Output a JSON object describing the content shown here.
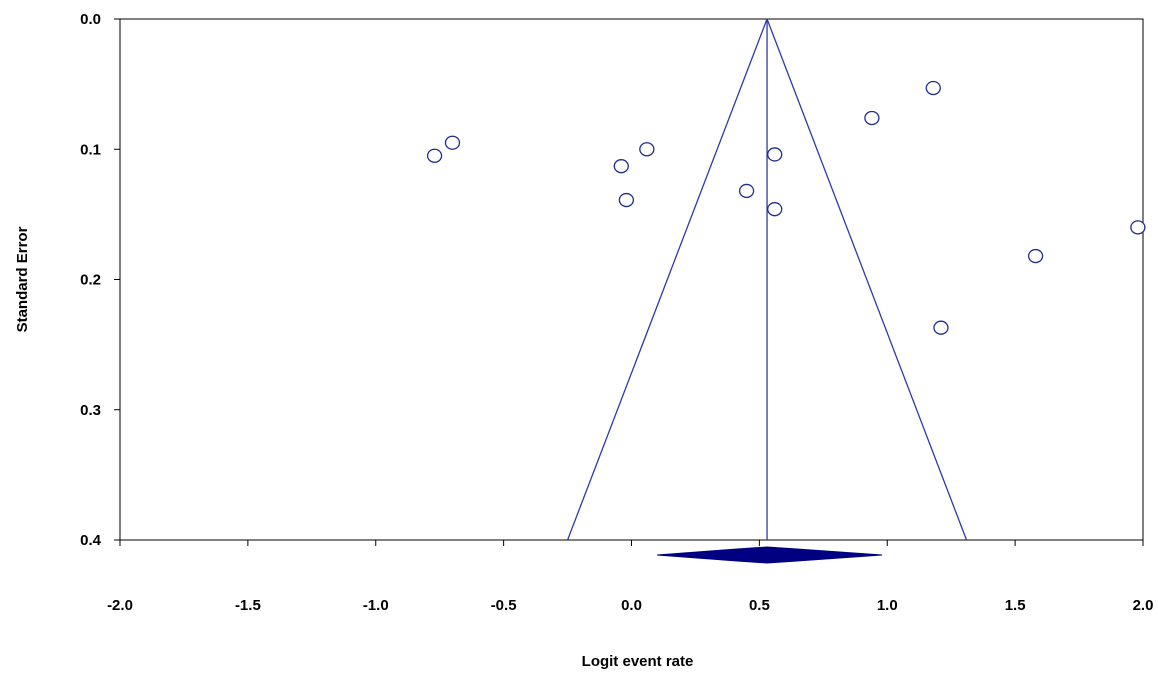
{
  "chart_data": {
    "type": "scatter",
    "subtype": "funnel-plot",
    "title": "",
    "xlabel": "Logit event rate",
    "ylabel": "Standard Error",
    "xlim": [
      -2.0,
      2.0
    ],
    "ylim": [
      0.0,
      0.4
    ],
    "y_inverted": true,
    "x_ticks": [
      "-2.0",
      "-1.5",
      "-1.0",
      "-0.5",
      "0.0",
      "0.5",
      "1.0",
      "1.5",
      "2.0"
    ],
    "y_ticks": [
      "0.0",
      "0.1",
      "0.2",
      "0.3",
      "0.4"
    ],
    "grid": false,
    "pooled_estimate": 0.53,
    "funnel_limits_at_max_se": [
      -0.25,
      1.31
    ],
    "summary_diamond": {
      "center": 0.53,
      "lower": 0.1,
      "upper": 0.98
    },
    "colors": {
      "marker": "#1f2d8c",
      "line": "#2d3aa8",
      "diamond": "#000080",
      "axis": "#000000"
    },
    "points": [
      {
        "x": -0.77,
        "y": 0.105
      },
      {
        "x": -0.7,
        "y": 0.095
      },
      {
        "x": -0.04,
        "y": 0.113
      },
      {
        "x": -0.02,
        "y": 0.139
      },
      {
        "x": 0.06,
        "y": 0.1
      },
      {
        "x": 0.45,
        "y": 0.132
      },
      {
        "x": 0.56,
        "y": 0.104
      },
      {
        "x": 0.56,
        "y": 0.146
      },
      {
        "x": 0.94,
        "y": 0.076
      },
      {
        "x": 1.18,
        "y": 0.053
      },
      {
        "x": 1.21,
        "y": 0.237
      },
      {
        "x": 1.58,
        "y": 0.182
      },
      {
        "x": 1.98,
        "y": 0.16
      }
    ]
  }
}
